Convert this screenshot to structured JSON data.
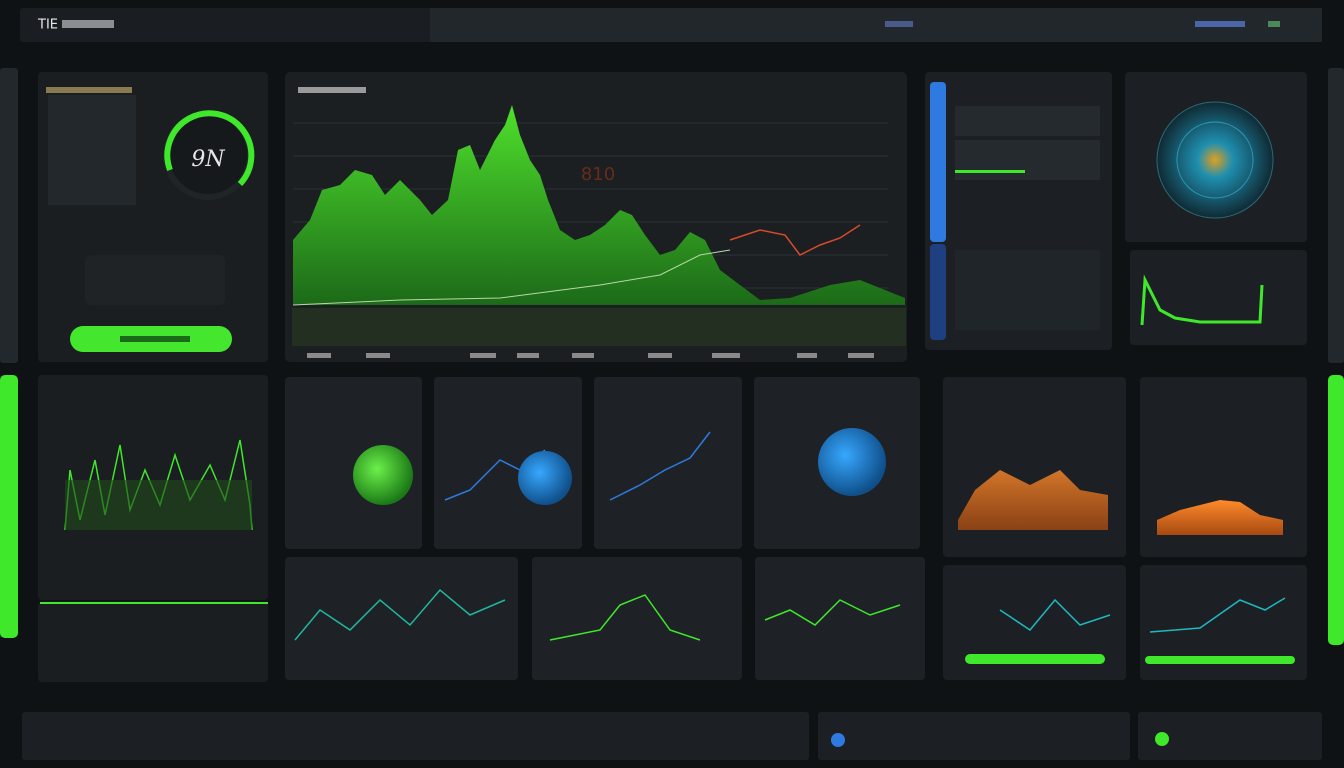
{
  "header": {
    "title": "TIE"
  },
  "gauge": {
    "label": "9N"
  },
  "main_chart": {
    "annotation": "810"
  }
}
